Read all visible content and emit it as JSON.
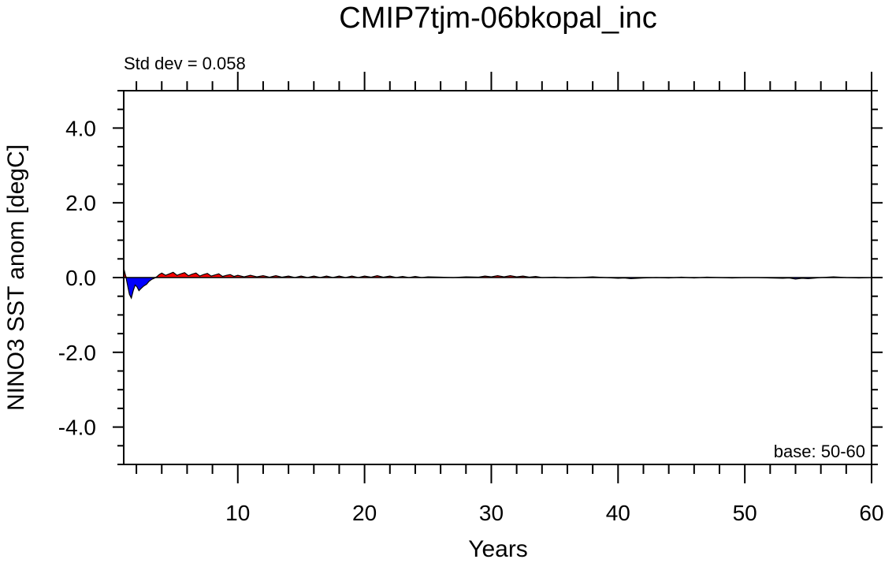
{
  "chart_data": {
    "type": "area",
    "title": "CMIP7tjm-06bkopal_inc",
    "xlabel": "Years",
    "ylabel": "NINO3 SST anom [degC]",
    "annotation_left": "Std dev = 0.058",
    "annotation_right": "base: 50-60",
    "xlim": [
      1,
      60
    ],
    "ylim": [
      -5,
      5
    ],
    "xticks": [
      10,
      20,
      30,
      40,
      50,
      60
    ],
    "yticks": [
      4.0,
      2.0,
      0.0,
      -2.0,
      -4.0
    ],
    "ytick_labels": [
      "4.0",
      "2.0",
      "0.0",
      "-2.0",
      "-4.0"
    ],
    "grid": false,
    "colors": {
      "positive": "#ff0000",
      "negative": "#0000ff",
      "line": "#000000"
    },
    "x": [
      1.0,
      1.15,
      1.3,
      1.45,
      1.6,
      1.75,
      1.9,
      2.05,
      2.2,
      2.4,
      2.6,
      2.8,
      3.0,
      3.2,
      3.4,
      3.6,
      3.8,
      4.0,
      4.3,
      4.6,
      4.9,
      5.2,
      5.5,
      5.8,
      6.1,
      6.4,
      6.7,
      7.0,
      7.3,
      7.6,
      7.9,
      8.2,
      8.5,
      8.8,
      9.1,
      9.4,
      9.7,
      10.0,
      10.5,
      11.0,
      11.5,
      12.0,
      12.5,
      13.0,
      13.5,
      14.0,
      14.5,
      15.0,
      15.5,
      16.0,
      16.5,
      17.0,
      17.5,
      18.0,
      18.5,
      19.0,
      19.5,
      20.0,
      20.5,
      21.0,
      21.5,
      22.0,
      22.5,
      23.0,
      23.5,
      24.0,
      24.5,
      25.0,
      26.0,
      27.0,
      28.0,
      29.0,
      29.5,
      30.0,
      30.5,
      31.0,
      31.5,
      32.0,
      32.5,
      33.0,
      33.5,
      34.0,
      35.0,
      36.0,
      37.0,
      38.0,
      39.0,
      40.0,
      40.5,
      41.0,
      42.0,
      43.0,
      44.0,
      45.0,
      46.0,
      47.0,
      48.0,
      49.0,
      50.0,
      51.0,
      52.0,
      53.0,
      53.5,
      54.0,
      54.5,
      55.0,
      56.0,
      57.0,
      58.0,
      59.0,
      60.0
    ],
    "y": [
      0.25,
      0.05,
      -0.2,
      -0.45,
      -0.55,
      -0.35,
      -0.2,
      -0.25,
      -0.35,
      -0.28,
      -0.22,
      -0.18,
      -0.1,
      -0.05,
      -0.02,
      0.02,
      0.08,
      0.12,
      0.06,
      0.1,
      0.14,
      0.06,
      0.1,
      0.13,
      0.05,
      0.09,
      0.12,
      0.04,
      0.08,
      0.11,
      0.04,
      0.07,
      0.1,
      0.03,
      0.06,
      0.08,
      0.03,
      0.06,
      0.02,
      0.06,
      0.02,
      0.05,
      0.01,
      0.05,
      0.01,
      0.04,
      0.0,
      0.04,
      0.0,
      0.04,
      0.0,
      0.04,
      0.0,
      0.04,
      0.0,
      0.04,
      0.0,
      0.04,
      0.01,
      0.05,
      0.01,
      0.04,
      0.0,
      0.03,
      0.0,
      0.03,
      0.0,
      0.02,
      0.01,
      0.0,
      0.02,
      0.01,
      0.04,
      0.02,
      0.05,
      0.02,
      0.05,
      0.02,
      0.04,
      0.01,
      0.03,
      0.0,
      0.01,
      -0.01,
      0.0,
      0.02,
      0.0,
      -0.02,
      -0.01,
      -0.03,
      -0.01,
      0.0,
      -0.01,
      0.01,
      -0.01,
      0.01,
      0.0,
      -0.01,
      0.0,
      0.0,
      -0.01,
      -0.02,
      -0.01,
      -0.04,
      -0.02,
      -0.03,
      0.0,
      0.02,
      0.0,
      -0.01,
      0.0
    ]
  }
}
